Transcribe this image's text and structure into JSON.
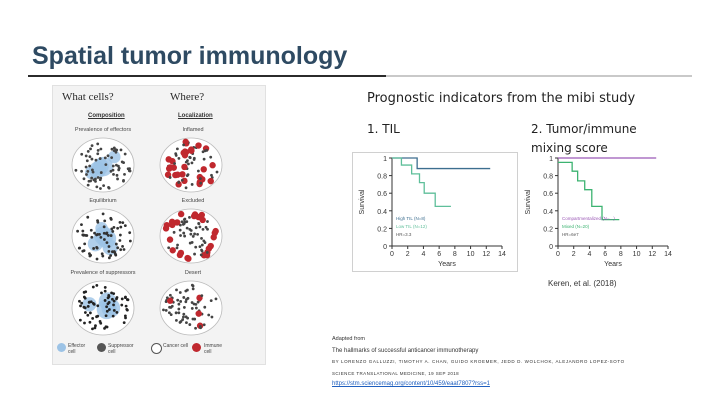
{
  "slide": {
    "title": "Spatial tumor immunology"
  },
  "left_figure": {
    "col1_heading": "What cells?",
    "col2_heading": "Where?",
    "col1_subheading": "Composition",
    "col2_subheading": "Localization",
    "rows": [
      {
        "left_label": "Prevalence of effectors",
        "right_label": "Inflamed"
      },
      {
        "left_label": "Equilibrium",
        "right_label": "Excluded"
      },
      {
        "left_label": "Prevalence of suppressors",
        "right_label": "Desert"
      }
    ],
    "legend": [
      {
        "label": "Effector cell",
        "color": "#9cc3e6"
      },
      {
        "label": "Suppressor cell",
        "color": "#555555"
      },
      {
        "label": "Cancer cell",
        "color": "#ffffff"
      },
      {
        "label": "Immune cell",
        "color": "#c0282e"
      }
    ]
  },
  "right_figure": {
    "title": "Prognostic indicators from the mibi study",
    "panel1_label": "1. TIL",
    "panel2_label": "2. Tumor/immune mixing score",
    "citation": "Keren, et al. (2018)"
  },
  "chart_data": [
    {
      "type": "line",
      "xlabel": "Years",
      "ylabel": "Survival",
      "xlim": [
        0,
        14
      ],
      "ylim": [
        0,
        1
      ],
      "xticks": [
        "0",
        "2",
        "4",
        "6",
        "8",
        "10",
        "12",
        "14"
      ],
      "yticks": [
        "0",
        "0.2",
        "0.4",
        "0.6",
        "0.8",
        "1"
      ],
      "legend_placement": "bottom-left",
      "legend_text": [
        "High TIL (N=8)",
        "Low TIL (N=12)",
        "HR=3.3"
      ],
      "series": [
        {
          "name": "High TIL (N=8)",
          "color": "#3d6e8f",
          "x": [
            0,
            1,
            2,
            3.2,
            3.2,
            4.4,
            4.4,
            12.5
          ],
          "y": [
            1,
            1,
            1,
            1,
            0.88,
            0.88,
            0.88,
            0.88
          ]
        },
        {
          "name": "Low TIL (N=12)",
          "color": "#5fbf9a",
          "x": [
            0,
            1.2,
            1.2,
            2.5,
            2.5,
            3.5,
            3.5,
            4.1,
            4.1,
            5.5,
            5.5,
            7.5
          ],
          "y": [
            1,
            1,
            0.92,
            0.92,
            0.82,
            0.82,
            0.72,
            0.72,
            0.6,
            0.6,
            0.45,
            0.45
          ]
        }
      ]
    },
    {
      "type": "line",
      "xlabel": "Years",
      "ylabel": "Survival",
      "xlim": [
        0,
        14
      ],
      "ylim": [
        0,
        1
      ],
      "xticks": [
        "0",
        "2",
        "4",
        "6",
        "8",
        "10",
        "12",
        "14"
      ],
      "yticks": [
        "0",
        "0.2",
        "0.4",
        "0.6",
        "0.8",
        "1"
      ],
      "legend_placement": "bottom-left",
      "legend_text": [
        "Compartmentalized (N=...)",
        "Mixed (N=20)",
        "HR=6e7"
      ],
      "series": [
        {
          "name": "Compartmentalized",
          "color": "#9b59b6",
          "x": [
            0,
            12.5
          ],
          "y": [
            1,
            1
          ]
        },
        {
          "name": "Mixed (N=20)",
          "color": "#3cb371",
          "x": [
            0,
            1.8,
            1.8,
            2.5,
            2.5,
            3.4,
            3.4,
            4.3,
            4.3,
            5.6,
            5.6,
            7.8
          ],
          "y": [
            0.95,
            0.95,
            0.85,
            0.85,
            0.74,
            0.74,
            0.64,
            0.64,
            0.45,
            0.45,
            0.3,
            0.3
          ]
        }
      ]
    }
  ],
  "reference": {
    "line1": "Adapted from",
    "line2": "The hallmarks of successful anticancer immunotherapy",
    "line3": "BY LORENZO GALLUZZI, TIMOTHY A. CHAN, GUIDO KROEMER, JEDD D. WOLCHOK, ALEJANDRO LOPEZ-SOTO",
    "line4": "SCIENCE TRANSLATIONAL MEDICINE, 19 SEP 2018",
    "link": "https://stm.sciencemag.org/content/10/459/eaat7807?rss=1"
  }
}
